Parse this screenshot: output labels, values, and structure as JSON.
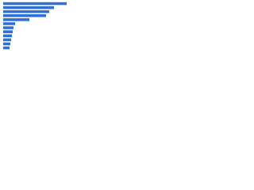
{
  "chart_data": {
    "type": "bar",
    "orientation": "horizontal",
    "categories": [
      null,
      null,
      null,
      null,
      null,
      null,
      null,
      null,
      null,
      null,
      null,
      null
    ],
    "values": [
      80,
      64,
      58,
      54,
      33,
      15,
      13,
      12,
      11,
      10,
      9,
      8
    ],
    "color": "#2f6fd6"
  }
}
